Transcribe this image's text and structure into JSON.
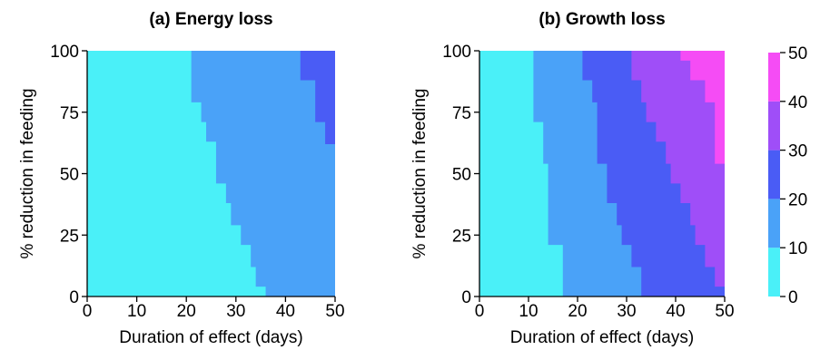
{
  "chart_data": {
    "type": "heatmap",
    "panels": [
      {
        "id": "energy",
        "title": "(a) Energy loss",
        "xlabel": "Duration of effect (days)",
        "ylabel": "% reduction in feeding",
        "xlim": [
          0,
          50
        ],
        "ylim": [
          0,
          100
        ],
        "xticks": [
          "0",
          "10",
          "20",
          "30",
          "40",
          "50"
        ],
        "yticks": [
          "0",
          "25",
          "50",
          "75",
          "100"
        ],
        "bands": [
          {
            "level": "0-10",
            "color": "#4af0f8",
            "boundary": null
          },
          {
            "level": "10-20",
            "color": "#4aa2f8",
            "boundary": [
              [
                36,
                0
              ],
              [
                36,
                4
              ],
              [
                34,
                4
              ],
              [
                34,
                12
              ],
              [
                33,
                12
              ],
              [
                33,
                21
              ],
              [
                31,
                21
              ],
              [
                31,
                29
              ],
              [
                29,
                29
              ],
              [
                29,
                38
              ],
              [
                28,
                38
              ],
              [
                28,
                46
              ],
              [
                26,
                46
              ],
              [
                26,
                54
              ],
              [
                26,
                63
              ],
              [
                24,
                63
              ],
              [
                24,
                71
              ],
              [
                23,
                71
              ],
              [
                23,
                79
              ],
              [
                21,
                79
              ],
              [
                21,
                100
              ]
            ]
          },
          {
            "level": "20-30",
            "color": "#4a5cf5",
            "boundary": [
              [
                50,
                62
              ],
              [
                48,
                62
              ],
              [
                48,
                71
              ],
              [
                46,
                71
              ],
              [
                46,
                88
              ],
              [
                43,
                88
              ],
              [
                43,
                100
              ]
            ]
          }
        ]
      },
      {
        "id": "growth",
        "title": "(b) Growth loss",
        "xlabel": "Duration of effect (days)",
        "ylabel": "% reduction in feeding",
        "xlim": [
          0,
          50
        ],
        "ylim": [
          0,
          100
        ],
        "xticks": [
          "0",
          "10",
          "20",
          "30",
          "40",
          "50"
        ],
        "yticks": [
          "0",
          "25",
          "50",
          "75",
          "100"
        ],
        "bands": [
          {
            "level": "0-10",
            "color": "#4af0f8",
            "boundary": null
          },
          {
            "level": "10-20",
            "color": "#4aa2f8",
            "boundary": [
              [
                17,
                0
              ],
              [
                17,
                21
              ],
              [
                14,
                21
              ],
              [
                14,
                54
              ],
              [
                13,
                54
              ],
              [
                13,
                71
              ],
              [
                11,
                71
              ],
              [
                11,
                100
              ]
            ]
          },
          {
            "level": "20-30",
            "color": "#4a5cf5",
            "boundary": [
              [
                33,
                0
              ],
              [
                33,
                12
              ],
              [
                31,
                12
              ],
              [
                31,
                21
              ],
              [
                29,
                21
              ],
              [
                29,
                29
              ],
              [
                28,
                29
              ],
              [
                28,
                38
              ],
              [
                26,
                38
              ],
              [
                26,
                54
              ],
              [
                24,
                54
              ],
              [
                24,
                63
              ],
              [
                24,
                79
              ],
              [
                23,
                79
              ],
              [
                23,
                88
              ],
              [
                21,
                88
              ],
              [
                21,
                100
              ]
            ]
          },
          {
            "level": "30-40",
            "color": "#9f4ef8",
            "boundary": [
              [
                50,
                4
              ],
              [
                48,
                4
              ],
              [
                48,
                12
              ],
              [
                46,
                12
              ],
              [
                46,
                21
              ],
              [
                44,
                21
              ],
              [
                44,
                29
              ],
              [
                43,
                29
              ],
              [
                43,
                38
              ],
              [
                41,
                38
              ],
              [
                41,
                46
              ],
              [
                39,
                46
              ],
              [
                39,
                54
              ],
              [
                38,
                54
              ],
              [
                38,
                63
              ],
              [
                36,
                63
              ],
              [
                36,
                71
              ],
              [
                34,
                71
              ],
              [
                34,
                79
              ],
              [
                33,
                79
              ],
              [
                33,
                88
              ],
              [
                31,
                88
              ],
              [
                31,
                100
              ]
            ]
          },
          {
            "level": "40-50",
            "color": "#f54cf5",
            "boundary": [
              [
                50,
                54
              ],
              [
                48,
                54
              ],
              [
                48,
                79
              ],
              [
                46,
                79
              ],
              [
                46,
                88
              ],
              [
                43,
                88
              ],
              [
                43,
                96
              ],
              [
                41,
                96
              ],
              [
                41,
                100
              ]
            ]
          }
        ]
      }
    ],
    "colorbar": {
      "ticks": [
        "0",
        "10",
        "20",
        "30",
        "40",
        "50"
      ],
      "colors": [
        "#4af0f8",
        "#4aa2f8",
        "#4a5cf5",
        "#9f4ef8",
        "#f54cf5"
      ]
    }
  }
}
